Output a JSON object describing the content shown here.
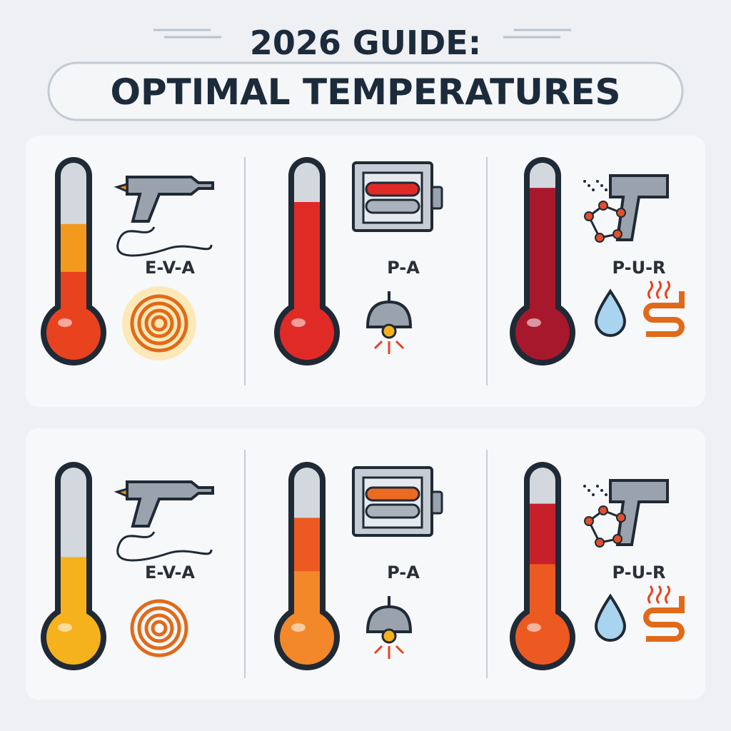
{
  "header": {
    "title_line1": "2026 GUIDE:",
    "title_line2": "OPTIMAL TEMPERATURES"
  },
  "panels": [
    {
      "items": [
        {
          "label": "E-V-A"
        },
        {
          "label": "P-A"
        },
        {
          "label": "P-U-R"
        }
      ]
    },
    {
      "items": [
        {
          "label": "E-V-A"
        },
        {
          "label": "P-A"
        },
        {
          "label": "P-U-R"
        }
      ]
    }
  ]
}
